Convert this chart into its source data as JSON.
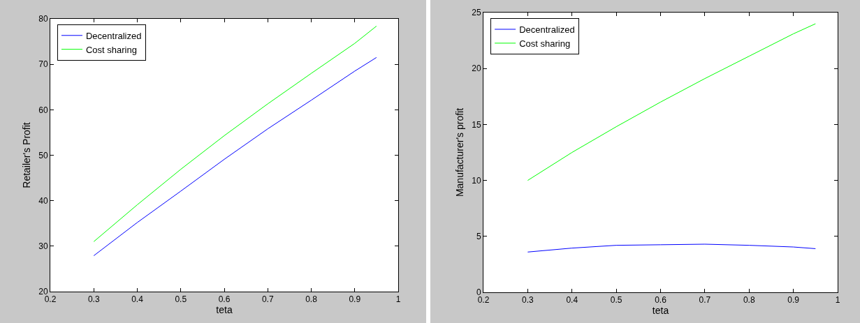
{
  "chart_data": [
    {
      "type": "line",
      "xlabel": "teta",
      "ylabel": "Retailer's Profit",
      "x": [
        0.3,
        0.4,
        0.5,
        0.6,
        0.7,
        0.8,
        0.9,
        0.95
      ],
      "xlim": [
        0.2,
        1
      ],
      "xticks": [
        0.2,
        0.3,
        0.4,
        0.5,
        0.6,
        0.7,
        0.8,
        0.9,
        1
      ],
      "ylim": [
        20,
        80
      ],
      "yticks": [
        20,
        30,
        40,
        50,
        60,
        70,
        80
      ],
      "grid": false,
      "legend": "top left",
      "series": [
        {
          "name": "Decentralized",
          "color": "#0000ff",
          "values": [
            27.9,
            35.2,
            42.1,
            49.1,
            55.8,
            62.1,
            68.5,
            71.5
          ]
        },
        {
          "name": "Cost sharing",
          "color": "#00ff00",
          "values": [
            31.0,
            39.1,
            46.9,
            54.3,
            61.3,
            68.0,
            74.6,
            78.4
          ]
        }
      ]
    },
    {
      "type": "line",
      "xlabel": "teta",
      "ylabel": "Manufacturer's profit",
      "x": [
        0.3,
        0.4,
        0.5,
        0.6,
        0.7,
        0.8,
        0.9,
        0.95
      ],
      "xlim": [
        0.2,
        1
      ],
      "xticks": [
        0.2,
        0.3,
        0.4,
        0.5,
        0.6,
        0.7,
        0.8,
        0.9,
        1
      ],
      "ylim": [
        0,
        25
      ],
      "yticks": [
        0,
        5,
        10,
        15,
        20,
        25
      ],
      "grid": false,
      "legend": "top left",
      "series": [
        {
          "name": "Decentralized",
          "color": "#0000ff",
          "values": [
            3.6,
            3.95,
            4.2,
            4.25,
            4.3,
            4.2,
            4.05,
            3.9
          ]
        },
        {
          "name": "Cost sharing",
          "color": "#00ff00",
          "values": [
            10.0,
            12.5,
            14.8,
            17.0,
            19.1,
            21.1,
            23.1,
            24.0
          ]
        }
      ]
    }
  ]
}
